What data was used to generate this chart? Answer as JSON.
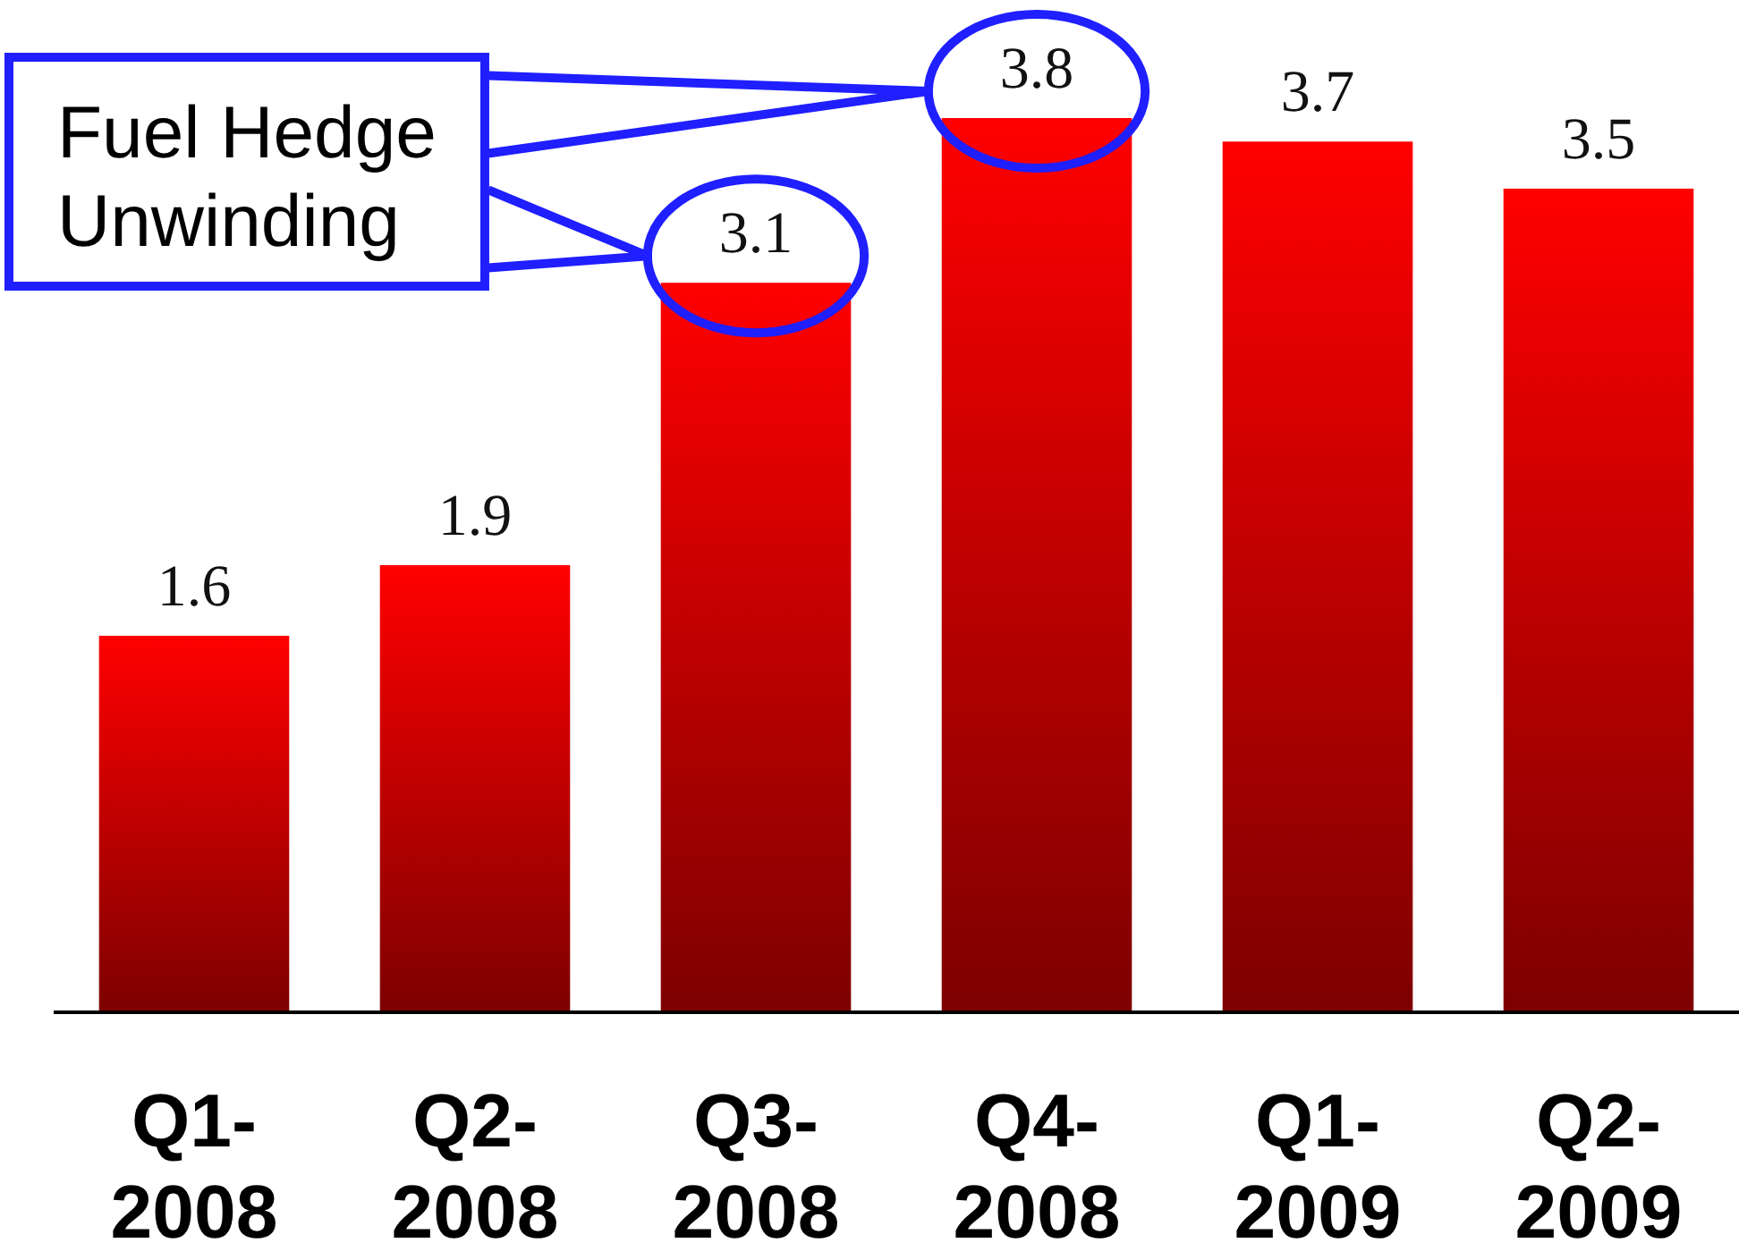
{
  "chart_data": {
    "type": "bar",
    "categories": [
      "Q1-2008",
      "Q2-2008",
      "Q3-2008",
      "Q4-2008",
      "Q1-2009",
      "Q2-2009"
    ],
    "values": [
      1.6,
      1.9,
      3.1,
      3.8,
      3.7,
      3.5
    ],
    "color": "#ff0000",
    "tick_labels": "x",
    "data_labels": true,
    "annotations": [
      "Fuel Hedge Unwinding"
    ]
  }
}
